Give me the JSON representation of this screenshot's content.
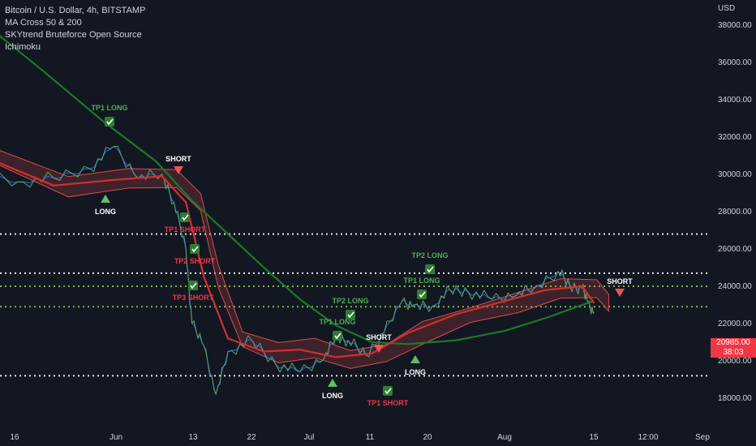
{
  "legend": {
    "title": "Bitcoin / U.S. Dollar, 4h, BITSTAMP",
    "indicator1": "MA Cross 50 & 200",
    "indicator2": "SKYtrend Bruteforce Open Source",
    "indicator3": "Ichimoku"
  },
  "axis": {
    "currency": "USD",
    "y_ticks": [
      "38000.00",
      "36000.00",
      "34000.00",
      "32000.00",
      "30000.00",
      "28000.00",
      "26000.00",
      "24000.00",
      "22000.00",
      "20000.00",
      "18000.00"
    ],
    "x_ticks": [
      "16",
      "Jun",
      "13",
      "22",
      "Jul",
      "11",
      "20",
      "Aug",
      "15",
      "12:00",
      "Sep"
    ]
  },
  "current_price": {
    "value": "20985.00",
    "countdown": "38:03",
    "color": "#f23645"
  },
  "colors": {
    "background": "#131722",
    "price": "#5ba85a",
    "ma_fast": "#d32f2f",
    "ma_slow": "#1b7a26",
    "ichimoku_bull": "#66bb6a",
    "ichimoku_bear": "#ef5350",
    "blue_line": "#2962ff",
    "tp_label": "#4caf50",
    "short_label": "#ffffff",
    "tp_short_label": "#f23645"
  },
  "signals": [
    {
      "label": "TP1 LONG",
      "kind": "tp_long"
    },
    {
      "label": "SHORT",
      "kind": "short"
    },
    {
      "label": "LONG",
      "kind": "long"
    },
    {
      "label": "TP1 SHORT",
      "kind": "tp_short"
    },
    {
      "label": "TP2 SHORT",
      "kind": "tp_short"
    },
    {
      "label": "TP3 SHORT",
      "kind": "tp_short"
    },
    {
      "label": "TP2 LONG",
      "kind": "tp_long"
    },
    {
      "label": "TP1 LONG",
      "kind": "tp_long"
    },
    {
      "label": "SHORT",
      "kind": "short"
    },
    {
      "label": "LONG",
      "kind": "long"
    },
    {
      "label": "TP1 SHORT",
      "kind": "tp_short"
    },
    {
      "label": "LONG",
      "kind": "long"
    },
    {
      "label": "TP1 LONG",
      "kind": "tp_long"
    },
    {
      "label": "TP2 LONG",
      "kind": "tp_long"
    },
    {
      "label": "SHORT",
      "kind": "short"
    }
  ],
  "chart_data": {
    "type": "line",
    "title": "Bitcoin / U.S. Dollar, 4h, BITSTAMP",
    "ylim": [
      17500,
      38800
    ],
    "y_scale": "linear",
    "grid": false,
    "horizontal_levels": [
      {
        "value": 26800,
        "style": "dotted",
        "color": "#ffffff"
      },
      {
        "value": 24700,
        "style": "dotted",
        "color": "#ffffff"
      },
      {
        "value": 24000,
        "style": "dotted",
        "color": "#8bc34a"
      },
      {
        "value": 22900,
        "style": "dotted",
        "color": "#8bc34a"
      },
      {
        "value": 19200,
        "style": "dotted",
        "color": "#ffffff"
      }
    ],
    "series": [
      {
        "name": "",
        "role": "price",
        "x": [
          "May 10",
          "May 16",
          "May 22",
          "May 28",
          "Jun 1",
          "Jun 5",
          "Jun 9",
          "Jun 11",
          "Jun 13",
          "Jun 14",
          "Jun 16",
          "Jun 18",
          "Jun 20",
          "Jun 24",
          "Jun 28",
          "Jul 2",
          "Jul 6",
          "Jul 8",
          "Jul 10",
          "Jul 13",
          "Jul 16",
          "Jul 19",
          "Jul 21",
          "Jul 24",
          "Jul 27",
          "Jul 30",
          "Aug 3",
          "Aug 7",
          "Aug 10",
          "Aug 14",
          "Aug 16",
          "Aug 18",
          "Aug 19",
          "Aug 20"
        ],
        "y": [
          30000,
          29600,
          29800,
          30300,
          31500,
          29800,
          30000,
          28500,
          26000,
          22000,
          20800,
          18200,
          20500,
          21100,
          19800,
          19400,
          20100,
          21300,
          21100,
          20300,
          21500,
          23200,
          23000,
          22900,
          23800,
          23700,
          23300,
          23500,
          23900,
          24800,
          24000,
          23900,
          23100,
          22600
        ]
      },
      {
        "name": "",
        "role": "ma_fast",
        "x": [
          "May 10",
          "May 22",
          "Jun 1",
          "Jun 9",
          "Jun 13",
          "Jun 16",
          "Jun 20",
          "Jun 26",
          "Jul 2",
          "Jul 8",
          "Jul 14",
          "Jul 20",
          "Jul 28",
          "Aug 5",
          "Aug 12",
          "Aug 18",
          "Aug 20"
        ],
        "y": [
          31000,
          29400,
          29700,
          29900,
          28500,
          24500,
          21200,
          20500,
          20600,
          20200,
          20400,
          21500,
          22500,
          23200,
          23800,
          24000,
          23100
        ]
      },
      {
        "name": "",
        "role": "ma_slow",
        "x": [
          "May 10",
          "May 20",
          "May 30",
          "Jun 8",
          "Jun 14",
          "Jun 20",
          "Jun 26",
          "Jul 2",
          "Jul 8",
          "Jul 14",
          "Jul 20",
          "Jul 28",
          "Aug 5",
          "Aug 12",
          "Aug 18",
          "Aug 20"
        ],
        "y": [
          38200,
          35600,
          32900,
          30700,
          28600,
          26800,
          25000,
          23300,
          21900,
          21000,
          20900,
          21100,
          21600,
          22300,
          23000,
          23200
        ]
      }
    ]
  }
}
